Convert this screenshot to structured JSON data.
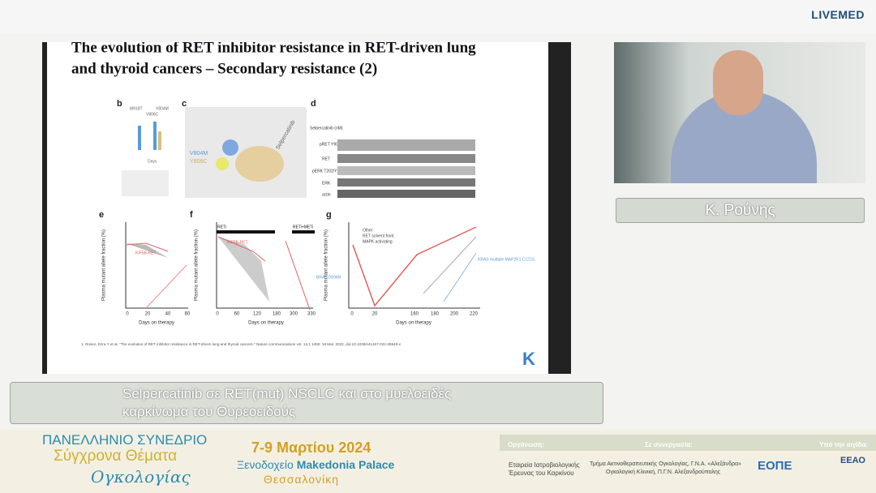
{
  "header": {
    "logo": "LIVEMED"
  },
  "slide": {
    "title_line1": "The evolution of RET inhibitor resistance in RET-driven lung",
    "title_line2": "and thyroid cancers – Secondary resistance (2)",
    "panel_letters": [
      "b",
      "c",
      "d",
      "e",
      "f",
      "g"
    ],
    "panel_b_legend": [
      "M918T",
      "V804M",
      "V806C"
    ],
    "panel_b_xlabel": "Days",
    "panel_c_labels": [
      "V804M",
      "Y806C",
      "Selpercatinib"
    ],
    "panel_d_drug": "Selpercatinib (nM)",
    "panel_d_rows": [
      "pRET Y905",
      "RET",
      "pERK T202/Y204",
      "ERK",
      "actin"
    ],
    "y_axis_title": "Plasma mutant allele fraction (%)",
    "x_axis_title": "Days on therapy",
    "e_xticks": [
      "0",
      "20",
      "40",
      "60"
    ],
    "e_label": "KIF5B-RET",
    "f_xticks": [
      "0",
      "60",
      "120",
      "180",
      "300",
      "330"
    ],
    "f_bars": [
      "RETi",
      "RETi+METi"
    ],
    "f_label": "KIF5B-RET",
    "f_label2": "BRAF D594N",
    "g_xticks": [
      "0",
      "20",
      "160",
      "180",
      "200",
      "220"
    ],
    "g_legend": [
      "Other",
      "RET solvent front",
      "MAPK activating"
    ],
    "g_label": "KRAS multiple MAP2K1 C121S",
    "citation": "1. Rosen, Ezra Y et al. \"The evolution of RET inhibitor resistance in RET-driven lung and thyroid cancers.\" Nature communications vol. 13,1 1450. 18 Mar. 2022, doi:10.1038/s41467-022-28848-x",
    "logo_letter": "K"
  },
  "speaker": {
    "name": "Κ. Ρούνης"
  },
  "caption": {
    "line1": "Selpercatinib σε RET(mut) NSCLC και στο μυελοειδές",
    "line2": "καρκίνωμα του Θυρεοειδούς"
  },
  "footer": {
    "title1": "ΠΑΝΕΛΛΗΝΙΟ ΣΥΝΕΔΡΙΟ",
    "title2": "Σύγχρονα Θέματα",
    "title3": "Ογκολογίας",
    "dates": "7-9 Μαρτίου 2024",
    "venue_prefix": "Ξενοδοχείο",
    "venue": "Makedonia Palace",
    "city": "Θεσσαλονίκη",
    "org_label": "Οργάνωση:",
    "org_line1": "Εταιρεία Ιατροβιολογικής",
    "org_line2": "Έρευνας του Καρκίνου",
    "collab_label": "Σε συνεργασία:",
    "collab_line1": "Τμήμα Ακτινοθεραπευτικής Ογκολογίας, Γ.Ν.Α. «Αλεξάνδρα»",
    "collab_line2": "Ογκολογική Κλινική, Π.Γ.Ν. Αλεξανδρούπολης",
    "auspices_label": "Υπό την αιγίδα:",
    "logo1": "ΕΟΠΕ",
    "logo2": "ΕΕΑΟ"
  }
}
